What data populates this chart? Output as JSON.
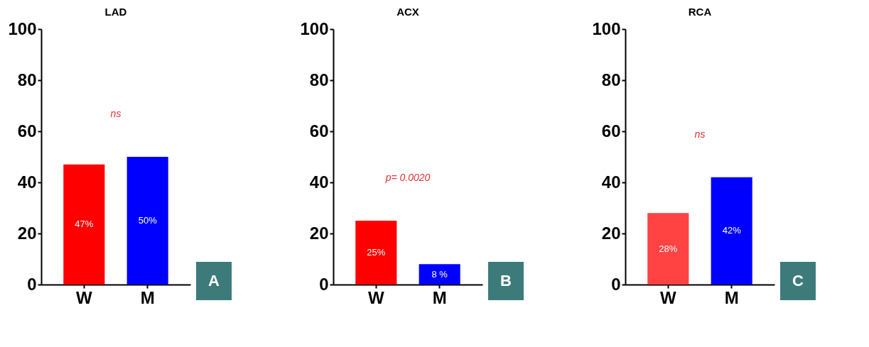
{
  "chart_data": [
    {
      "type": "bar",
      "title": "LAD",
      "categories": [
        "W",
        "M"
      ],
      "values": [
        47,
        50
      ],
      "colors": [
        "#ff0000",
        "#0000ff"
      ],
      "value_labels": [
        "47%",
        "50%"
      ],
      "ylim": [
        0,
        100
      ],
      "yticks": [
        0,
        20,
        40,
        60,
        80,
        100
      ],
      "annotations": [
        "ns",
        "A"
      ]
    },
    {
      "type": "bar",
      "title": "ACX",
      "categories": [
        "W",
        "M"
      ],
      "values": [
        25,
        8
      ],
      "colors": [
        "#ff0000",
        "#0000ff"
      ],
      "value_labels": [
        "25%",
        "8 %"
      ],
      "ylim": [
        0,
        100
      ],
      "yticks": [
        0,
        20,
        40,
        60,
        80,
        100
      ],
      "annotations": [
        "p= 0.0020",
        "B"
      ]
    },
    {
      "type": "bar",
      "title": "RCA",
      "categories": [
        "W",
        "M"
      ],
      "values": [
        28,
        42
      ],
      "colors": [
        "#ff4242",
        "#0000ff"
      ],
      "value_labels": [
        "28%",
        "42%"
      ],
      "ylim": [
        0,
        100
      ],
      "yticks": [
        0,
        20,
        40,
        60,
        80,
        100
      ],
      "annotations": [
        "ns",
        "C"
      ]
    }
  ]
}
